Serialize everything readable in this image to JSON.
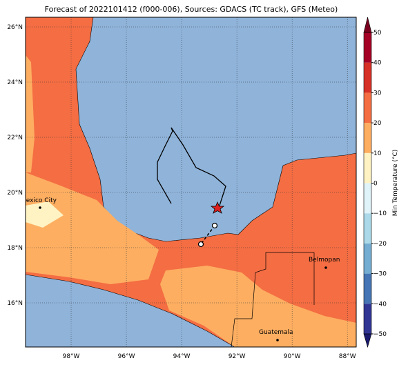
{
  "title": "Forecast of 2022101412 (f000-006), Sources: GDACS (TC track), GFS (Meteo)",
  "map": {
    "lonlim": [
      -99.65,
      -87.68
    ],
    "latlim": [
      14.4,
      26.35
    ],
    "lonticks": [
      {
        "value": -98,
        "label": "98°W"
      },
      {
        "value": -96,
        "label": "96°W"
      },
      {
        "value": -94,
        "label": "94°W"
      },
      {
        "value": -92,
        "label": "92°W"
      },
      {
        "value": -90,
        "label": "90°W"
      },
      {
        "value": -88,
        "label": "88°W"
      }
    ],
    "latticks": [
      {
        "value": 16,
        "label": "16°N"
      },
      {
        "value": 18,
        "label": "18°N"
      },
      {
        "value": 20,
        "label": "20°N"
      },
      {
        "value": 22,
        "label": "22°N"
      },
      {
        "value": 24,
        "label": "24°N"
      },
      {
        "value": 26,
        "label": "26°N"
      }
    ],
    "grid": true
  },
  "cities": [
    {
      "name": "Mexico City"
    },
    {
      "name": "Belmopan"
    },
    {
      "name": "Guatemala"
    }
  ],
  "colorbar": {
    "label": "Min Temperature (°C)",
    "lim": [
      -50,
      50
    ],
    "ticks": [
      {
        "value": -50,
        "label": "−50"
      },
      {
        "value": -40,
        "label": "−40"
      },
      {
        "value": -30,
        "label": "−30"
      },
      {
        "value": -20,
        "label": "−20"
      },
      {
        "value": -10,
        "label": "−10"
      },
      0,
      10,
      20,
      30,
      40,
      50
    ],
    "colors": [
      "#313695",
      "#4575b4",
      "#74add1",
      "#abd9e9",
      "#e0f3f8",
      "#fff3c4",
      "#fdae61",
      "#f46d43",
      "#d73027",
      "#a50026"
    ],
    "extend_colors": [
      "#1a1a6e",
      "#7a0020"
    ]
  }
}
